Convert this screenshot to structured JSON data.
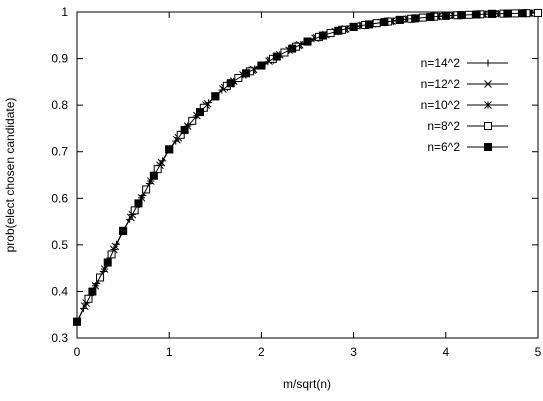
{
  "chart_data": {
    "type": "line",
    "xlabel": "m/sqrt(n)",
    "ylabel": "prob(elect chosen candidate)",
    "xlim": [
      0,
      5
    ],
    "ylim": [
      0.3,
      1
    ],
    "xticks": [
      "0",
      "1",
      "2",
      "3",
      "4",
      "5"
    ],
    "yticks": [
      "0.3",
      "0.4",
      "0.5",
      "0.6",
      "0.7",
      "0.8",
      "0.9",
      "1"
    ],
    "grid": false,
    "legend_position": "right",
    "series": [
      {
        "name": "n=14^2",
        "marker": "plus",
        "step": 0.0714
      },
      {
        "name": "n=12^2",
        "marker": "cross",
        "step": 0.0833
      },
      {
        "name": "n=10^2",
        "marker": "star",
        "step": 0.1
      },
      {
        "name": "n=8^2",
        "marker": "open-square",
        "step": 0.125
      },
      {
        "name": "n=6^2",
        "marker": "filled-square",
        "step": 0.1667
      }
    ],
    "curve": {
      "x": [
        0,
        0.1,
        0.2,
        0.3,
        0.4,
        0.5,
        0.6,
        0.8,
        1.0,
        1.2,
        1.4,
        1.6,
        1.8,
        2.0,
        2.2,
        2.4,
        2.6,
        2.8,
        3.0,
        3.25,
        3.5,
        3.75,
        4.0,
        4.5,
        5.0
      ],
      "y": [
        0.335,
        0.375,
        0.412,
        0.448,
        0.49,
        0.53,
        0.565,
        0.637,
        0.705,
        0.755,
        0.8,
        0.838,
        0.865,
        0.885,
        0.908,
        0.928,
        0.945,
        0.958,
        0.968,
        0.976,
        0.983,
        0.988,
        0.992,
        0.996,
        0.998
      ]
    }
  }
}
